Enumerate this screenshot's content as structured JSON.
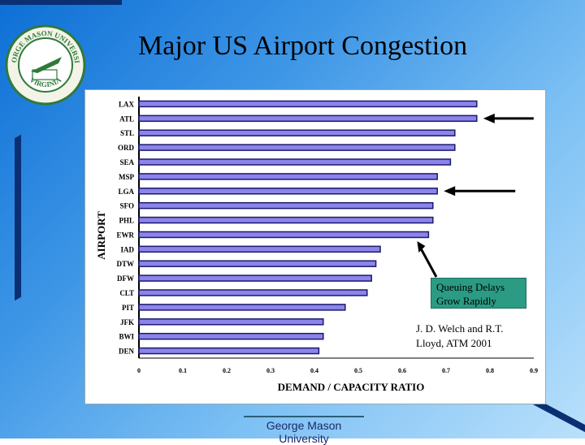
{
  "slide": {
    "title": "Major US Airport Congestion",
    "footer": "George Mason University",
    "callout": "Queuing Delays Grow Rapidly",
    "citation": "J. D. Welch and R.T. Lloyd, ATM 2001",
    "seal_text": [
      "GEORGE MASON UNIVERSITY",
      "VIRGINIA"
    ]
  },
  "colors": {
    "bar_fill": "#8c84e8",
    "bar_stroke": "#1a1a6e",
    "callout_bg": "#2b9b84",
    "seal_green": "#2f7a3a"
  },
  "chart_data": {
    "type": "bar",
    "orientation": "horizontal",
    "xlabel": "DEMAND / CAPACITY RATIO",
    "ylabel": "AIRPORT",
    "xlim": [
      0,
      0.9
    ],
    "xticks": [
      "0",
      "0.1",
      "0.2",
      "0.3",
      "0.4",
      "0.5",
      "0.6",
      "0.7",
      "0.8",
      "0.9"
    ],
    "categories": [
      "LAX",
      "ATL",
      "STL",
      "ORD",
      "SEA",
      "MSP",
      "LGA",
      "SFO",
      "PHL",
      "EWR",
      "IAD",
      "DTW",
      "DFW",
      "CLT",
      "PIT",
      "JFK",
      "BWI",
      "DEN"
    ],
    "values": [
      0.77,
      0.77,
      0.72,
      0.72,
      0.71,
      0.68,
      0.68,
      0.67,
      0.67,
      0.66,
      0.55,
      0.54,
      0.53,
      0.52,
      0.47,
      0.42,
      0.42,
      0.41
    ],
    "grid": false,
    "highlighted": [
      "ATL",
      "LGA"
    ]
  }
}
